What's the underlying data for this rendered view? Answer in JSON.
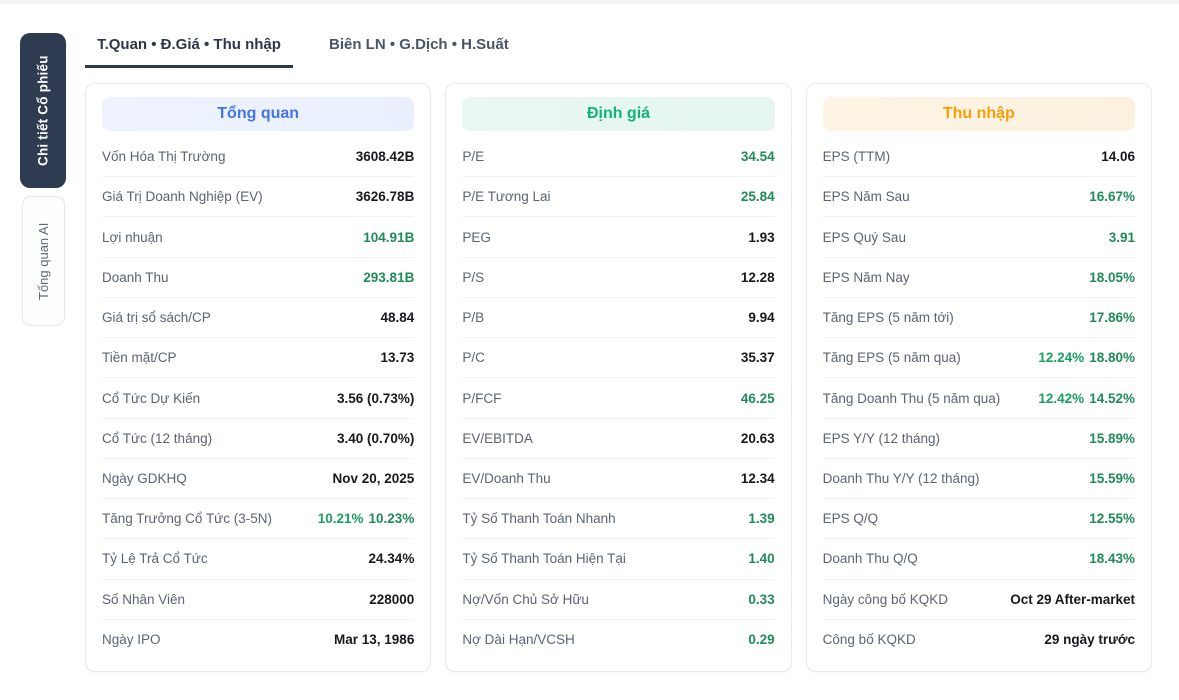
{
  "sidebar": {
    "tabs": [
      {
        "label": "Chi tiết Cổ phiếu",
        "active": true
      },
      {
        "label": "Tổng quan AI",
        "active": false
      }
    ]
  },
  "top_tabs": [
    {
      "label": "T.Quan • Đ.Giá • Thu nhập",
      "active": true
    },
    {
      "label": "Biên LN • G.Dịch • H.Suất",
      "active": false
    }
  ],
  "colors": {
    "accent_dark": "#2f3b50",
    "green_value": "#1f8b58",
    "dark_value": "#17191d"
  },
  "cards": [
    {
      "name": "overview-card",
      "title": "Tổng quan",
      "title_color": "#4673e8",
      "header_bg": "linear-gradient(90deg, #eef3fe, #e9effd)",
      "rows": [
        {
          "label": "Vốn Hóa Thị Trường",
          "value": "3608.42B",
          "color": "dark"
        },
        {
          "label": "Giá Trị Doanh Nghiệp (EV)",
          "value": "3626.78B",
          "color": "dark"
        },
        {
          "label": "Lợi nhuận",
          "value": "104.91B",
          "color": "green"
        },
        {
          "label": "Doanh Thu",
          "value": "293.81B",
          "color": "green"
        },
        {
          "label": "Giá trị sổ sách/CP",
          "value": "48.84",
          "color": "dark"
        },
        {
          "label": "Tiền mặt/CP",
          "value": "13.73",
          "color": "dark"
        },
        {
          "label": "Cổ Tức Dự Kiến",
          "value": "3.56 (0.73%)",
          "color": "dark"
        },
        {
          "label": "Cổ Tức (12 tháng)",
          "value": "3.40 (0.70%)",
          "color": "dark"
        },
        {
          "label": "Ngày GDKHQ",
          "value": "Nov 20, 2025",
          "color": "dark"
        },
        {
          "label": "Tăng Trưởng Cổ Tức (3-5N)",
          "value": "10.21%",
          "value2": "10.23%",
          "color": "green"
        },
        {
          "label": "Tỷ Lệ Trả Cổ Tức",
          "value": "24.34%",
          "color": "dark"
        },
        {
          "label": "Số Nhân Viên",
          "value": "228000",
          "color": "dark"
        },
        {
          "label": "Ngày IPO",
          "value": "Mar 13, 1986",
          "color": "dark"
        }
      ]
    },
    {
      "name": "valuation-card",
      "title": "Định giá",
      "title_color": "#10b479",
      "header_bg": "linear-gradient(90deg, #e9f8f1, #e4f6ee)",
      "rows": [
        {
          "label": "P/E",
          "value": "34.54",
          "color": "green"
        },
        {
          "label": "P/E Tương Lai",
          "value": "25.84",
          "color": "green"
        },
        {
          "label": "PEG",
          "value": "1.93",
          "color": "dark"
        },
        {
          "label": "P/S",
          "value": "12.28",
          "color": "dark"
        },
        {
          "label": "P/B",
          "value": "9.94",
          "color": "dark"
        },
        {
          "label": "P/C",
          "value": "35.37",
          "color": "dark"
        },
        {
          "label": "P/FCF",
          "value": "46.25",
          "color": "green"
        },
        {
          "label": "EV/EBITDA",
          "value": "20.63",
          "color": "dark"
        },
        {
          "label": "EV/Doanh Thu",
          "value": "12.34",
          "color": "dark"
        },
        {
          "label": "Tỷ Số Thanh Toán Nhanh",
          "value": "1.39",
          "color": "green"
        },
        {
          "label": "Tỷ Số Thanh Toán Hiện Tại",
          "value": "1.40",
          "color": "green"
        },
        {
          "label": "Nợ/Vốn Chủ Sở Hữu",
          "value": "0.33",
          "color": "green"
        },
        {
          "label": "Nợ Dài Hạn/VCSH",
          "value": "0.29",
          "color": "green"
        }
      ]
    },
    {
      "name": "earnings-card",
      "title": "Thu nhập",
      "title_color": "#f59f0a",
      "header_bg": "linear-gradient(90deg, #fdf4e5, #fcf1df)",
      "rows": [
        {
          "label": "EPS (TTM)",
          "value": "14.06",
          "color": "dark"
        },
        {
          "label": "EPS Năm Sau",
          "value": "16.67%",
          "color": "green"
        },
        {
          "label": "EPS Quý Sau",
          "value": "3.91",
          "color": "green"
        },
        {
          "label": "EPS Năm Nay",
          "value": "18.05%",
          "color": "green"
        },
        {
          "label": "Tăng EPS (5 năm tới)",
          "value": "17.86%",
          "color": "green"
        },
        {
          "label": "Tăng EPS (5 năm qua)",
          "value": "12.24%",
          "value2": "18.80%",
          "color": "green"
        },
        {
          "label": "Tăng Doanh Thu (5 năm qua)",
          "value": "12.42%",
          "value2": "14.52%",
          "color": "green"
        },
        {
          "label": "EPS Y/Y (12 tháng)",
          "value": "15.89%",
          "color": "green"
        },
        {
          "label": "Doanh Thu Y/Y (12 tháng)",
          "value": "15.59%",
          "color": "green"
        },
        {
          "label": "EPS Q/Q",
          "value": "12.55%",
          "color": "green"
        },
        {
          "label": "Doanh Thu Q/Q",
          "value": "18.43%",
          "color": "green"
        },
        {
          "label": "Ngày công bố KQKD",
          "value": "Oct 29 After-market",
          "color": "dark"
        },
        {
          "label": "Công bố KQKD",
          "value": "29 ngày trước",
          "color": "dark"
        }
      ]
    }
  ]
}
